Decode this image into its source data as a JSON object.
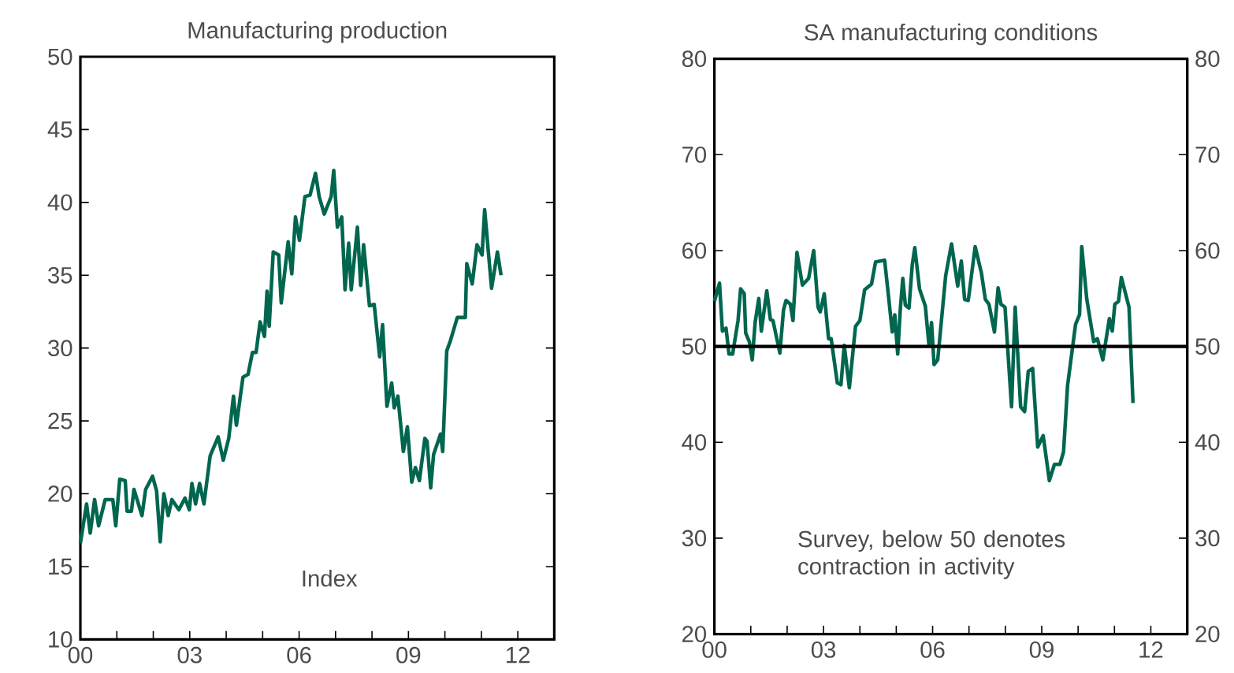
{
  "chart_data": [
    {
      "type": "line",
      "title": "Manufacturing production",
      "xlim": [
        2000,
        2013
      ],
      "xticks": [
        {
          "value": 2000,
          "label": "00"
        },
        {
          "value": 2001,
          "label": null
        },
        {
          "value": 2002,
          "label": null
        },
        {
          "value": 2003,
          "label": "03"
        },
        {
          "value": 2004,
          "label": null
        },
        {
          "value": 2005,
          "label": null
        },
        {
          "value": 2006,
          "label": "06"
        },
        {
          "value": 2007,
          "label": null
        },
        {
          "value": 2008,
          "label": null
        },
        {
          "value": 2009,
          "label": "09"
        },
        {
          "value": 2010,
          "label": null
        },
        {
          "value": 2011,
          "label": null
        },
        {
          "value": 2012,
          "label": "12"
        }
      ],
      "ylim": [
        10,
        50
      ],
      "yticks": [
        10,
        15,
        20,
        25,
        30,
        35,
        40,
        45,
        50
      ],
      "series": [
        {
          "color": "#00664f",
          "x": [
            2000.0,
            2000.17,
            2000.27,
            2000.39,
            2000.5,
            2000.68,
            2000.89,
            2000.97,
            2001.08,
            2001.23,
            2001.28,
            2001.4,
            2001.47,
            2001.69,
            2001.79,
            2001.98,
            2002.09,
            2002.19,
            2002.29,
            2002.41,
            2002.51,
            2002.7,
            2002.87,
            2002.99,
            2003.06,
            2003.16,
            2003.27,
            2003.39,
            2003.56,
            2003.78,
            2003.92,
            2004.07,
            2004.2,
            2004.28,
            2004.46,
            2004.6,
            2004.72,
            2004.82,
            2004.93,
            2005.05,
            2005.12,
            2005.18,
            2005.29,
            2005.44,
            2005.51,
            2005.7,
            2005.8,
            2005.9,
            2006.01,
            2006.16,
            2006.3,
            2006.45,
            2006.55,
            2006.69,
            2006.88,
            2006.95,
            2007.05,
            2007.17,
            2007.26,
            2007.36,
            2007.43,
            2007.6,
            2007.69,
            2007.77,
            2007.93,
            2008.06,
            2008.21,
            2008.29,
            2008.41,
            2008.54,
            2008.61,
            2008.71,
            2008.86,
            2008.97,
            2009.09,
            2009.19,
            2009.3,
            2009.45,
            2009.51,
            2009.61,
            2009.69,
            2009.88,
            2009.94,
            2010.05,
            2010.15,
            2010.34,
            2010.56,
            2010.6,
            2010.75,
            2010.88,
            2011.02,
            2011.09,
            2011.28,
            2011.44,
            2011.54
          ],
          "values": [
            16.6,
            19.3,
            17.3,
            19.6,
            17.8,
            19.6,
            19.6,
            17.8,
            21.0,
            20.9,
            18.8,
            18.8,
            20.3,
            18.5,
            20.3,
            21.2,
            20.2,
            16.7,
            20.0,
            18.5,
            19.6,
            18.9,
            19.7,
            18.9,
            20.7,
            19.3,
            20.7,
            19.3,
            22.6,
            23.9,
            22.3,
            23.8,
            26.7,
            24.7,
            28.0,
            28.2,
            29.7,
            29.7,
            31.8,
            30.8,
            33.9,
            31.5,
            36.6,
            36.4,
            33.1,
            37.3,
            35.1,
            39.0,
            37.4,
            40.4,
            40.5,
            42.0,
            40.4,
            39.2,
            40.4,
            42.2,
            38.3,
            39.0,
            34.0,
            37.2,
            34.0,
            38.3,
            34.3,
            37.1,
            32.9,
            33.0,
            29.4,
            31.6,
            26.0,
            27.6,
            25.9,
            26.7,
            22.9,
            24.6,
            20.8,
            21.8,
            20.9,
            23.8,
            23.6,
            20.4,
            22.7,
            24.1,
            22.9,
            29.8,
            30.5,
            32.1,
            32.1,
            35.8,
            34.4,
            37.1,
            36.4,
            39.5,
            34.1,
            36.6,
            35.0
          ]
        }
      ],
      "annotations": [
        "Index"
      ]
    },
    {
      "type": "line",
      "title": "SA manufacturing conditions",
      "xlim": [
        2000,
        2013
      ],
      "xticks": [
        {
          "value": 2000,
          "label": "00"
        },
        {
          "value": 2001,
          "label": null
        },
        {
          "value": 2002,
          "label": null
        },
        {
          "value": 2003,
          "label": "03"
        },
        {
          "value": 2004,
          "label": null
        },
        {
          "value": 2005,
          "label": null
        },
        {
          "value": 2006,
          "label": "06"
        },
        {
          "value": 2007,
          "label": null
        },
        {
          "value": 2008,
          "label": null
        },
        {
          "value": 2009,
          "label": "09"
        },
        {
          "value": 2010,
          "label": null
        },
        {
          "value": 2011,
          "label": null
        },
        {
          "value": 2012,
          "label": "12"
        }
      ],
      "ylim": [
        20,
        80
      ],
      "yticks": [
        20,
        30,
        40,
        50,
        60,
        70,
        80
      ],
      "y2lim": [
        20,
        80
      ],
      "y2ticks": [
        20,
        30,
        40,
        50,
        60,
        70,
        80
      ],
      "ref_lines": [
        {
          "axis": "y",
          "value": 50,
          "color": "#000000"
        }
      ],
      "series": [
        {
          "color": "#00664f",
          "x": [
            2000.0,
            2000.14,
            2000.22,
            2000.32,
            2000.4,
            2000.5,
            2000.65,
            2000.72,
            2000.82,
            2000.86,
            2000.96,
            2001.04,
            2001.12,
            2001.22,
            2001.29,
            2001.44,
            2001.54,
            2001.61,
            2001.8,
            2001.9,
            2001.97,
            2002.09,
            2002.16,
            2002.27,
            2002.42,
            2002.59,
            2002.73,
            2002.85,
            2002.91,
            2003.02,
            2003.14,
            2003.21,
            2003.38,
            2003.48,
            2003.57,
            2003.71,
            2003.88,
            2004.0,
            2004.13,
            2004.32,
            2004.43,
            2004.68,
            2004.78,
            2004.89,
            2004.96,
            2005.04,
            2005.11,
            2005.18,
            2005.25,
            2005.35,
            2005.44,
            2005.51,
            2005.64,
            2005.8,
            2005.9,
            2005.97,
            2006.04,
            2006.14,
            2006.36,
            2006.52,
            2006.69,
            2006.79,
            2006.88,
            2006.98,
            2007.17,
            2007.34,
            2007.45,
            2007.55,
            2007.7,
            2007.8,
            2007.88,
            2007.99,
            2008.17,
            2008.27,
            2008.42,
            2008.53,
            2008.63,
            2008.75,
            2008.89,
            2009.04,
            2009.21,
            2009.35,
            2009.5,
            2009.6,
            2009.71,
            2009.93,
            2010.04,
            2010.1,
            2010.24,
            2010.43,
            2010.53,
            2010.68,
            2010.86,
            2010.94,
            2011.01,
            2011.11,
            2011.19,
            2011.4,
            2011.51
          ],
          "values": [
            54.7,
            56.6,
            51.6,
            51.9,
            49.2,
            49.2,
            52.7,
            56.0,
            55.5,
            51.4,
            50.5,
            48.6,
            52.5,
            55.0,
            51.6,
            55.8,
            52.8,
            52.7,
            49.3,
            53.8,
            54.8,
            54.4,
            52.7,
            59.8,
            56.4,
            57.1,
            60.0,
            54.1,
            53.6,
            55.5,
            50.8,
            50.8,
            46.2,
            46.0,
            50.1,
            45.7,
            52.1,
            52.7,
            55.9,
            56.5,
            58.8,
            59.0,
            55.5,
            51.5,
            53.3,
            49.2,
            53.8,
            57.1,
            54.3,
            54.0,
            58.5,
            60.3,
            56.0,
            54.2,
            50.1,
            52.5,
            48.1,
            48.6,
            57.4,
            60.7,
            56.3,
            58.9,
            54.9,
            54.8,
            60.4,
            57.7,
            54.9,
            54.4,
            51.5,
            56.1,
            54.4,
            54.1,
            43.7,
            54.1,
            43.7,
            43.2,
            47.4,
            47.7,
            39.5,
            40.7,
            36.0,
            37.7,
            37.7,
            39.0,
            45.9,
            52.3,
            53.3,
            60.4,
            54.9,
            50.5,
            50.8,
            48.6,
            52.9,
            51.6,
            54.4,
            54.7,
            57.2,
            54.1,
            44.1
          ]
        }
      ],
      "annotations": [
        "Survey, below 50 denotes contraction in activity"
      ]
    }
  ]
}
